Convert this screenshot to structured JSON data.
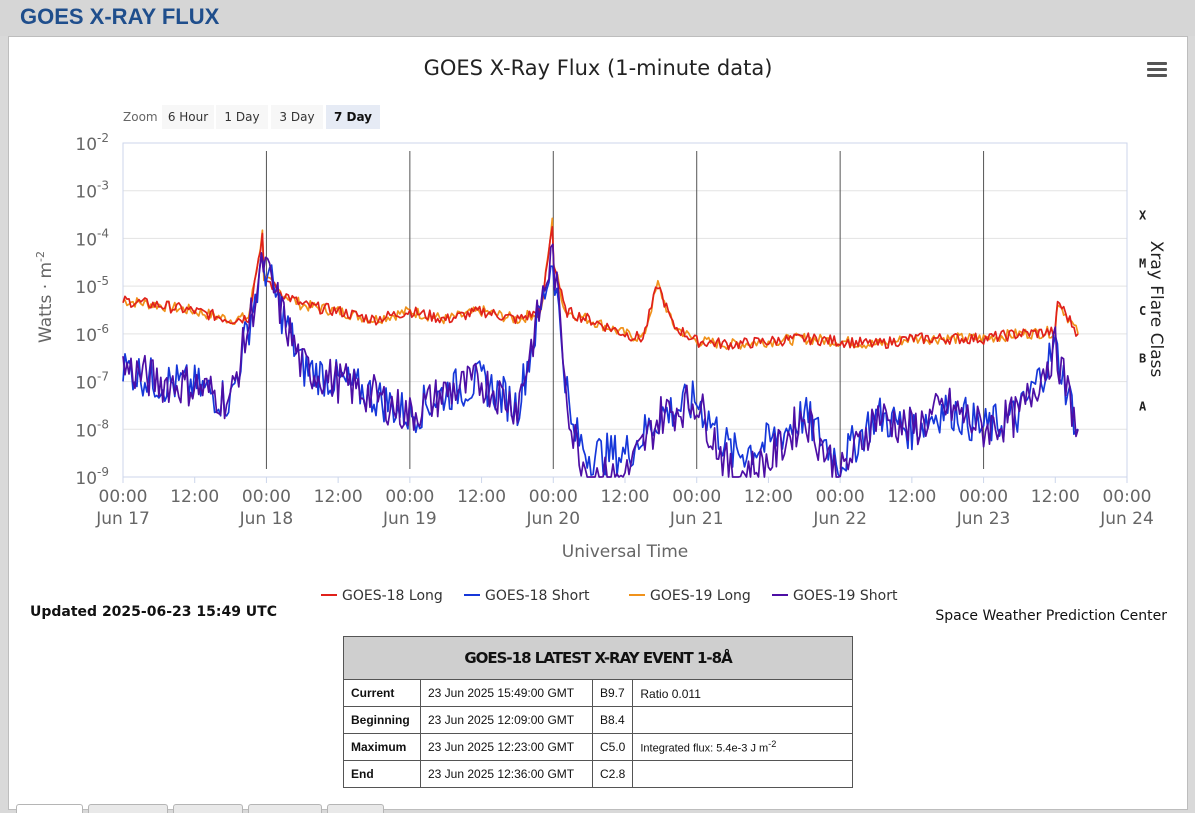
{
  "header": {
    "title": "GOES X-RAY FLUX"
  },
  "toolbar": {
    "menu_icon": "hamburger-menu-icon"
  },
  "zoom": {
    "label": "Zoom",
    "buttons": [
      "6 Hour",
      "1 Day",
      "3 Day",
      "7 Day"
    ],
    "selected": "7 Day"
  },
  "chart_data": {
    "type": "line",
    "title": "GOES X-Ray Flux (1-minute data)",
    "xlabel": "Universal Time",
    "ylabel": "Watts · m",
    "ylabel_sup": "-2",
    "y2label": "Xray Flare Class",
    "yscale": "log",
    "ylim": [
      1e-09,
      0.01
    ],
    "yticks": [
      {
        "base": "10",
        "exp": "-2"
      },
      {
        "base": "10",
        "exp": "-3"
      },
      {
        "base": "10",
        "exp": "-4"
      },
      {
        "base": "10",
        "exp": "-5"
      },
      {
        "base": "10",
        "exp": "-6"
      },
      {
        "base": "10",
        "exp": "-7"
      },
      {
        "base": "10",
        "exp": "-8"
      },
      {
        "base": "10",
        "exp": "-9"
      }
    ],
    "flare_classes": [
      {
        "label": "X",
        "value": 0.0001
      },
      {
        "label": "M",
        "value": 1e-05
      },
      {
        "label": "C",
        "value": 1e-06
      },
      {
        "label": "B",
        "value": 1e-07
      },
      {
        "label": "A",
        "value": 1e-08
      }
    ],
    "xlim": [
      "2025-06-17 00:00",
      "2025-06-24 00:00"
    ],
    "xticks": [
      {
        "time": "00:00",
        "date": "Jun 17"
      },
      {
        "time": "12:00",
        "date": ""
      },
      {
        "time": "00:00",
        "date": "Jun 18"
      },
      {
        "time": "12:00",
        "date": ""
      },
      {
        "time": "00:00",
        "date": "Jun 19"
      },
      {
        "time": "12:00",
        "date": ""
      },
      {
        "time": "00:00",
        "date": "Jun 20"
      },
      {
        "time": "12:00",
        "date": ""
      },
      {
        "time": "00:00",
        "date": "Jun 21"
      },
      {
        "time": "12:00",
        "date": ""
      },
      {
        "time": "00:00",
        "date": "Jun 22"
      },
      {
        "time": "12:00",
        "date": ""
      },
      {
        "time": "00:00",
        "date": "Jun 23"
      },
      {
        "time": "12:00",
        "date": ""
      },
      {
        "time": "00:00",
        "date": "Jun 24"
      }
    ],
    "series": [
      {
        "name": "GOES-18 Long",
        "color": "#e0211b",
        "x": [
          "2025-06-17 00:00",
          "2025-06-17 06:00",
          "2025-06-17 12:00",
          "2025-06-17 18:00",
          "2025-06-17 21:00",
          "2025-06-17 23:20",
          "2025-06-17 23:35",
          "2025-06-18 02:00",
          "2025-06-18 06:00",
          "2025-06-18 12:00",
          "2025-06-18 18:00",
          "2025-06-19 00:00",
          "2025-06-19 06:00",
          "2025-06-19 12:00",
          "2025-06-19 18:00",
          "2025-06-19 22:00",
          "2025-06-19 23:50",
          "2025-06-20 00:05",
          "2025-06-20 02:00",
          "2025-06-20 06:00",
          "2025-06-20 12:00",
          "2025-06-20 15:00",
          "2025-06-20 17:30",
          "2025-06-20 20:00",
          "2025-06-21 00:00",
          "2025-06-21 06:00",
          "2025-06-21 12:00",
          "2025-06-21 18:00",
          "2025-06-22 00:00",
          "2025-06-22 06:00",
          "2025-06-22 12:00",
          "2025-06-22 18:00",
          "2025-06-23 00:00",
          "2025-06-23 06:00",
          "2025-06-23 12:00",
          "2025-06-23 12:23",
          "2025-06-23 15:49"
        ],
        "y": [
          5e-06,
          4e-06,
          3e-06,
          2e-06,
          2.2e-06,
          0.00012,
          1.5e-05,
          8e-06,
          4e-06,
          3e-06,
          2e-06,
          3e-06,
          2e-06,
          3e-06,
          2e-06,
          3e-06,
          0.0002,
          3e-05,
          3e-06,
          2e-06,
          1e-06,
          8e-07,
          1.1e-05,
          1.5e-06,
          7e-07,
          6e-07,
          7e-07,
          8e-07,
          7e-07,
          6e-07,
          8e-07,
          8e-07,
          8e-07,
          1e-06,
          1.1e-06,
          5e-06,
          1e-06
        ]
      },
      {
        "name": "GOES-18 Short",
        "color": "#1637d9",
        "x": [
          "2025-06-17 00:00",
          "2025-06-17 06:00",
          "2025-06-17 12:00",
          "2025-06-17 18:00",
          "2025-06-17 23:30",
          "2025-06-18 06:00",
          "2025-06-18 12:00",
          "2025-06-18 18:00",
          "2025-06-19 00:00",
          "2025-06-19 06:00",
          "2025-06-19 12:00",
          "2025-06-19 18:00",
          "2025-06-19 23:55",
          "2025-06-20 03:00",
          "2025-06-20 06:00",
          "2025-06-20 12:00",
          "2025-06-20 18:00",
          "2025-06-21 00:00",
          "2025-06-21 06:00",
          "2025-06-21 12:00",
          "2025-06-21 18:00",
          "2025-06-22 00:00",
          "2025-06-22 06:00",
          "2025-06-22 12:00",
          "2025-06-22 18:00",
          "2025-06-23 00:00",
          "2025-06-23 06:00",
          "2025-06-23 12:00",
          "2025-06-23 15:49"
        ],
        "y": [
          2e-07,
          1e-07,
          8e-08,
          4e-08,
          3e-05,
          2e-07,
          1e-07,
          5e-08,
          2e-08,
          6e-08,
          1e-07,
          3e-08,
          4e-05,
          1e-08,
          3e-09,
          3e-09,
          2e-08,
          4e-08,
          3e-09,
          5e-09,
          2e-08,
          2e-09,
          2e-08,
          1e-08,
          3e-08,
          1e-08,
          2e-08,
          5e-07,
          1e-08
        ]
      },
      {
        "name": "GOES-19 Long",
        "color": "#f0921b",
        "x": [
          "2025-06-17 00:00",
          "2025-06-17 06:00",
          "2025-06-17 12:00",
          "2025-06-17 18:00",
          "2025-06-17 21:00",
          "2025-06-17 23:20",
          "2025-06-17 23:35",
          "2025-06-18 02:00",
          "2025-06-18 06:00",
          "2025-06-18 12:00",
          "2025-06-18 18:00",
          "2025-06-19 00:00",
          "2025-06-19 06:00",
          "2025-06-19 12:00",
          "2025-06-19 18:00",
          "2025-06-19 22:00",
          "2025-06-19 23:50",
          "2025-06-20 00:05",
          "2025-06-20 02:00",
          "2025-06-20 06:00",
          "2025-06-20 12:00",
          "2025-06-20 15:00",
          "2025-06-20 17:30",
          "2025-06-20 20:00",
          "2025-06-21 00:00",
          "2025-06-21 06:00",
          "2025-06-21 12:00",
          "2025-06-21 18:00",
          "2025-06-22 00:00",
          "2025-06-22 06:00",
          "2025-06-22 12:00",
          "2025-06-22 18:00",
          "2025-06-23 00:00",
          "2025-06-23 06:00",
          "2025-06-23 12:00",
          "2025-06-23 12:23",
          "2025-06-23 15:49"
        ],
        "y": [
          5e-06,
          4e-06,
          3e-06,
          2e-06,
          2.2e-06,
          0.00013,
          1.5e-05,
          8e-06,
          4e-06,
          3e-06,
          2e-06,
          3e-06,
          2e-06,
          3e-06,
          2e-06,
          3e-06,
          0.00022,
          3e-05,
          3e-06,
          2e-06,
          1e-06,
          8e-07,
          1.1e-05,
          1.5e-06,
          7e-07,
          6e-07,
          7e-07,
          8e-07,
          7e-07,
          6e-07,
          8e-07,
          8e-07,
          8e-07,
          1e-06,
          1.1e-06,
          5e-06,
          1e-06
        ]
      },
      {
        "name": "GOES-19 Short",
        "color": "#4d0fa5",
        "x": [
          "2025-06-17 00:00",
          "2025-06-17 06:00",
          "2025-06-17 12:00",
          "2025-06-17 18:00",
          "2025-06-17 23:30",
          "2025-06-18 06:00",
          "2025-06-18 12:00",
          "2025-06-18 18:00",
          "2025-06-19 00:00",
          "2025-06-19 06:00",
          "2025-06-19 12:00",
          "2025-06-19 18:00",
          "2025-06-19 23:55",
          "2025-06-20 03:00",
          "2025-06-20 06:00",
          "2025-06-20 12:00",
          "2025-06-20 18:00",
          "2025-06-21 00:00",
          "2025-06-21 06:00",
          "2025-06-21 12:00",
          "2025-06-21 18:00",
          "2025-06-22 00:00",
          "2025-06-22 06:00",
          "2025-06-22 12:00",
          "2025-06-22 18:00",
          "2025-06-23 00:00",
          "2025-06-23 06:00",
          "2025-06-23 12:00",
          "2025-06-23 15:49"
        ],
        "y": [
          2e-07,
          1e-07,
          8e-08,
          4e-08,
          3e-05,
          2e-07,
          1e-07,
          5e-08,
          2e-08,
          6e-08,
          1e-07,
          3e-08,
          5e-05,
          1e-08,
          1e-09,
          1e-09,
          2e-08,
          4e-08,
          1e-09,
          2e-09,
          2e-08,
          1e-09,
          2e-08,
          1e-08,
          3e-08,
          1e-08,
          2e-08,
          5e-07,
          1e-08
        ]
      }
    ],
    "legend_position": "bottom"
  },
  "footer": {
    "updated": "Updated 2025-06-23 15:49 UTC",
    "credit": "Space Weather Prediction Center"
  },
  "event_table": {
    "title": "GOES-18 LATEST X-RAY EVENT 1-8Å",
    "rows": [
      {
        "label": "Current",
        "time": "23 Jun 2025 15:49:00 GMT",
        "class": "B9.7",
        "extra": "Ratio 0.011",
        "extra_sup": ""
      },
      {
        "label": "Beginning",
        "time": "23 Jun 2025 12:09:00 GMT",
        "class": "B8.4",
        "extra": "",
        "extra_sup": ""
      },
      {
        "label": "Maximum",
        "time": "23 Jun 2025 12:23:00 GMT",
        "class": "C5.0",
        "extra": "Integrated flux: 5.4e-3 J m",
        "extra_sup": "-2"
      },
      {
        "label": "End",
        "time": "23 Jun 2025 12:36:00 GMT",
        "class": "C2.8",
        "extra": "",
        "extra_sup": ""
      }
    ]
  }
}
